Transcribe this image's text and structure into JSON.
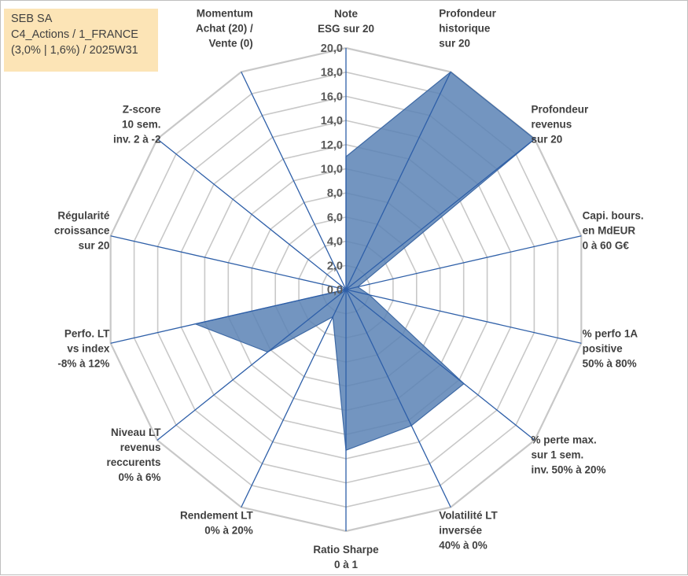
{
  "title": {
    "line1": "SEB SA",
    "line2": "C4_Actions / 1_FRANCE",
    "line3": "(3,0% | 1,6%) / 2025W31"
  },
  "colors": {
    "fill": "#5b83b5",
    "stroke": "#3f6aa5",
    "spoke": "#2e5fa8",
    "grid": "#c8c8c8",
    "title_bg": "#fce4b6"
  },
  "chart_data": {
    "type": "radar",
    "rmin": 0,
    "rmax": 20,
    "ticks": [
      "0,0",
      "2,0",
      "4,0",
      "6,0",
      "8,0",
      "10,0",
      "12,0",
      "14,0",
      "16,0",
      "18,0",
      "20,0"
    ],
    "grid": true,
    "legend": "none",
    "axes": [
      [
        "Note",
        "ESG sur 20"
      ],
      [
        "Profondeur",
        "historique",
        "sur 20"
      ],
      [
        "Profondeur",
        "revenus",
        "sur 20"
      ],
      [
        "Capi. bours.",
        "en MdEUR",
        "0 à 60 G€"
      ],
      [
        "% perfo 1A",
        "positive",
        "50% à 80%"
      ],
      [
        "% perte max.",
        "sur 1 sem.",
        "inv. 50% à 20%"
      ],
      [
        "Volatilité LT",
        "inversée",
        "40% à 0%"
      ],
      [
        "Ratio Sharpe",
        "0 à 1"
      ],
      [
        "Rendement LT",
        "0% à 20%"
      ],
      [
        "Niveau LT",
        "revenus",
        "reccurents",
        "0% à 6%"
      ],
      [
        "Perfo. LT",
        "vs index",
        "-8% à 12%"
      ],
      [
        "Régularité",
        "croissance",
        "sur 20"
      ],
      [
        "Z-score",
        "10 sem.",
        "inv. 2 à -2"
      ],
      [
        "Momentum",
        "Achat (20) /",
        "Vente (0)"
      ]
    ],
    "values": [
      11.0,
      20.0,
      20.0,
      1.0,
      2.0,
      12.5,
      12.5,
      13.3,
      2.5,
      8.3,
      12.8,
      0.0,
      0.0,
      0.0
    ]
  }
}
